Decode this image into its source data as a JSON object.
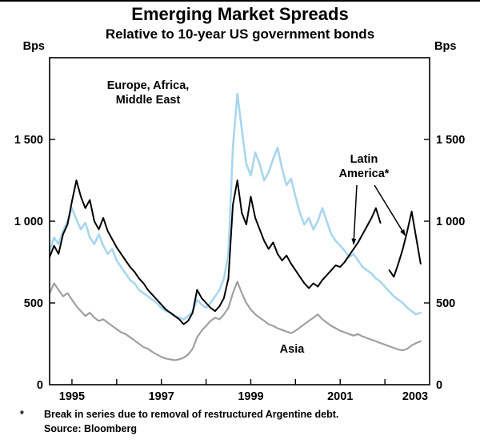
{
  "axis": {
    "unit_left": "Bps",
    "unit_right": "Bps"
  },
  "annotations": {
    "europe": "Europe, Africa,\nMiddle East",
    "latam": "Latin\nAmerica*",
    "asia": "Asia"
  },
  "footnote": {
    "marker": "*",
    "text": "Break in series due to removal of restructured Argentine debt."
  },
  "source": "Source: Bloomberg",
  "chart_data": {
    "type": "line",
    "title": "Emerging Market Spreads",
    "subtitle": "Relative to 10-year US government bonds",
    "ylabel": "Bps",
    "ylim": [
      0,
      2000
    ],
    "xlim": [
      1994.5,
      2003
    ],
    "grid": false,
    "legend_position": "inline-annotations",
    "yticks": [
      {
        "value": 0,
        "label": "0"
      },
      {
        "value": 500,
        "label": "500"
      },
      {
        "value": 1000,
        "label": "1 000"
      },
      {
        "value": 1500,
        "label": "1 500"
      }
    ],
    "xticks": [
      {
        "value": 1995,
        "label": "1995"
      },
      {
        "value": 1997,
        "label": "1997"
      },
      {
        "value": 1999,
        "label": "1999"
      },
      {
        "value": 2001,
        "label": "2001"
      },
      {
        "value": 2003,
        "label": "2003"
      }
    ],
    "x_minor_ticks": [
      1995,
      1996,
      1997,
      1998,
      1999,
      2000,
      2001,
      2002
    ],
    "x": [
      1994.5,
      1994.6,
      1994.7,
      1994.8,
      1994.9,
      1995.0,
      1995.1,
      1995.2,
      1995.3,
      1995.4,
      1995.5,
      1995.6,
      1995.7,
      1995.8,
      1995.9,
      1996.0,
      1996.1,
      1996.2,
      1996.3,
      1996.4,
      1996.5,
      1996.6,
      1996.7,
      1996.8,
      1996.9,
      1997.0,
      1997.1,
      1997.2,
      1997.3,
      1997.4,
      1997.5,
      1997.6,
      1997.7,
      1997.8,
      1997.9,
      1998.0,
      1998.1,
      1998.2,
      1998.3,
      1998.4,
      1998.5,
      1998.6,
      1998.7,
      1998.8,
      1998.9,
      1999.0,
      1999.1,
      1999.2,
      1999.3,
      1999.4,
      1999.5,
      1999.6,
      1999.7,
      1999.8,
      1999.9,
      2000.0,
      2000.1,
      2000.2,
      2000.3,
      2000.4,
      2000.5,
      2000.6,
      2000.7,
      2000.8,
      2000.9,
      2001.0,
      2001.1,
      2001.2,
      2001.3,
      2001.4,
      2001.5,
      2001.6,
      2001.7,
      2001.8,
      2001.9,
      2002.0,
      2002.1,
      2002.2,
      2002.3,
      2002.4,
      2002.5,
      2002.6,
      2002.7,
      2002.8
    ],
    "series": [
      {
        "name": "Europe, Africa, Middle East",
        "color": "#a8d6ee",
        "values": [
          820,
          900,
          860,
          940,
          1000,
          1080,
          1010,
          950,
          990,
          900,
          860,
          920,
          850,
          800,
          830,
          760,
          720,
          680,
          640,
          620,
          580,
          560,
          540,
          520,
          500,
          470,
          450,
          440,
          420,
          410,
          400,
          420,
          450,
          520,
          490,
          470,
          500,
          540,
          580,
          650,
          800,
          1450,
          1780,
          1560,
          1350,
          1280,
          1420,
          1350,
          1250,
          1300,
          1380,
          1450,
          1320,
          1220,
          1260,
          1150,
          1050,
          980,
          1020,
          950,
          1000,
          1080,
          1000,
          920,
          880,
          850,
          820,
          780,
          800,
          760,
          720,
          700,
          680,
          650,
          630,
          600,
          570,
          540,
          520,
          500,
          470,
          450,
          430,
          440
        ]
      },
      {
        "name": "Asia",
        "color": "#a0a0a0",
        "values": [
          560,
          620,
          580,
          540,
          560,
          520,
          480,
          450,
          420,
          440,
          410,
          390,
          400,
          380,
          360,
          340,
          320,
          310,
          290,
          270,
          250,
          230,
          220,
          200,
          185,
          170,
          160,
          155,
          150,
          155,
          165,
          185,
          220,
          290,
          330,
          360,
          390,
          410,
          400,
          430,
          470,
          560,
          630,
          560,
          500,
          460,
          430,
          410,
          390,
          370,
          360,
          345,
          335,
          325,
          315,
          330,
          350,
          370,
          390,
          410,
          430,
          400,
          380,
          360,
          345,
          330,
          320,
          310,
          300,
          310,
          295,
          285,
          275,
          265,
          255,
          245,
          235,
          225,
          215,
          210,
          220,
          240,
          255,
          265
        ]
      },
      {
        "name": "Latin America",
        "color": "#000000",
        "break_note": "Break in series due to removal of restructured Argentine debt.",
        "values": [
          780,
          850,
          800,
          920,
          980,
          1120,
          1250,
          1150,
          1080,
          1130,
          1000,
          950,
          1020,
          940,
          890,
          840,
          800,
          760,
          720,
          690,
          650,
          620,
          580,
          550,
          520,
          490,
          460,
          440,
          420,
          400,
          370,
          390,
          440,
          580,
          530,
          500,
          470,
          450,
          480,
          530,
          650,
          1100,
          1250,
          1050,
          980,
          1150,
          1020,
          950,
          880,
          830,
          870,
          800,
          760,
          790,
          740,
          700,
          660,
          620,
          590,
          620,
          600,
          640,
          670,
          700,
          730,
          720,
          750,
          790,
          830,
          870,
          920,
          970,
          1020,
          1080,
          990,
          null,
          700,
          660,
          740,
          830,
          940,
          1060,
          900,
          740
        ]
      }
    ]
  }
}
